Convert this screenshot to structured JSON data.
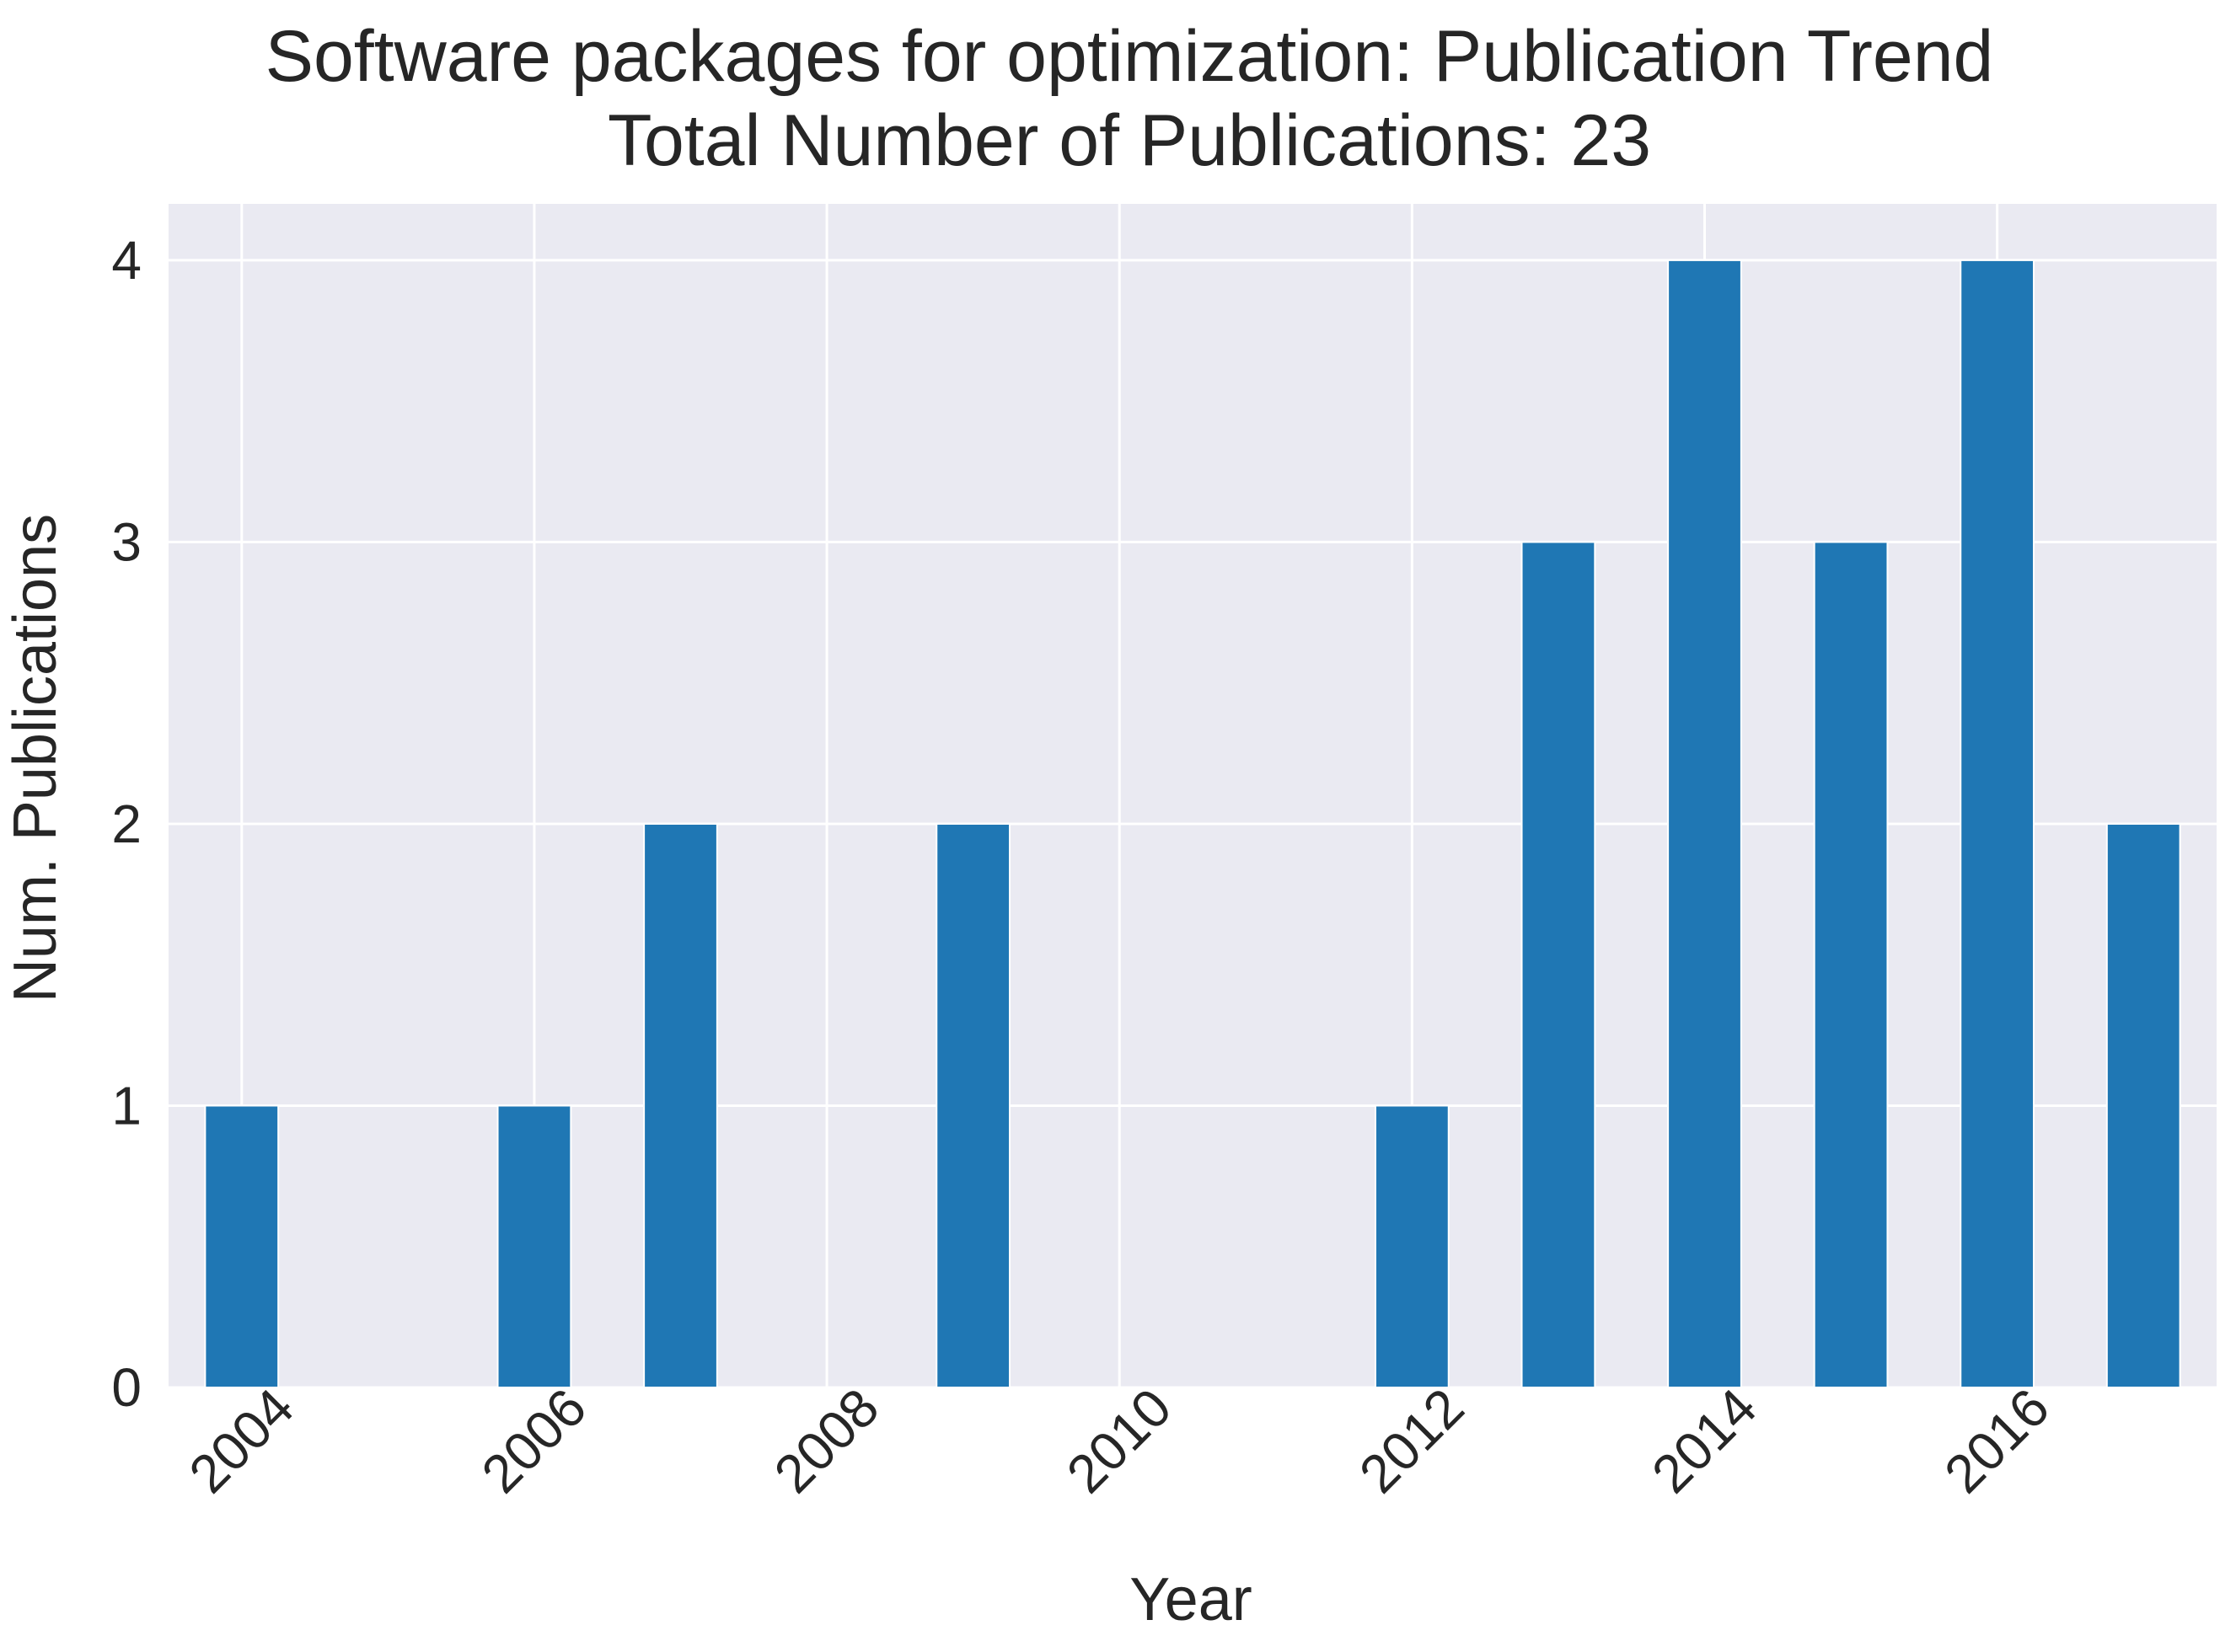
{
  "chart_data": {
    "type": "bar",
    "title": "Software packages for optimization: Publication Trend",
    "subtitle": "Total Number of Publications: 23",
    "xlabel": "Year",
    "ylabel": "Num. Publications",
    "x": [
      2004,
      2006,
      2007,
      2009,
      2012,
      2013,
      2014,
      2015,
      2016,
      2017
    ],
    "values": [
      1,
      1,
      2,
      2,
      1,
      3,
      4,
      3,
      4,
      2
    ],
    "xticks": [
      "2004",
      "2006",
      "2008",
      "2010",
      "2012",
      "2014",
      "2016"
    ],
    "xtick_values": [
      2004,
      2006,
      2008,
      2010,
      2012,
      2014,
      2016
    ],
    "yticks": [
      "0",
      "1",
      "2",
      "3",
      "4"
    ],
    "ytick_values": [
      0,
      1,
      2,
      3,
      4
    ],
    "xlim": [
      2003.5,
      2017.5
    ],
    "ylim": [
      0,
      4.2
    ],
    "grid": true,
    "colors": {
      "bar": "#1f77b4",
      "plot_background": "#eaeaf2",
      "grid": "#ffffff",
      "text": "#262626"
    }
  }
}
